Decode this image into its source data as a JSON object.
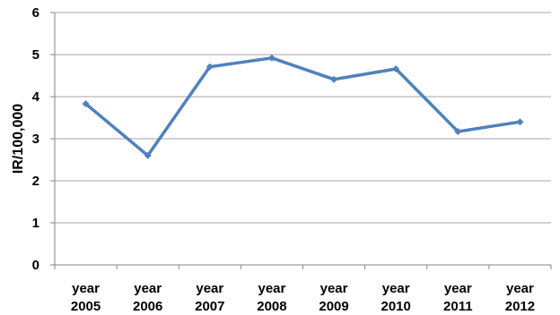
{
  "chart_data": {
    "type": "line",
    "title": "",
    "xlabel": "",
    "ylabel": "IR/100,000",
    "categories": [
      [
        "year",
        "2005"
      ],
      [
        "year",
        "2006"
      ],
      [
        "year",
        "2007"
      ],
      [
        "year",
        "2008"
      ],
      [
        "year",
        "2009"
      ],
      [
        "year",
        "2010"
      ],
      [
        "year",
        "2011"
      ],
      [
        "year",
        "2012"
      ]
    ],
    "series": [
      {
        "values": [
          3.83,
          2.6,
          4.71,
          4.92,
          4.41,
          4.66,
          3.17,
          3.4
        ]
      }
    ],
    "ylim": [
      0,
      6
    ],
    "yticks": [
      0,
      1,
      2,
      3,
      4,
      5,
      6
    ],
    "grid": true,
    "legend": "none",
    "colors": {
      "line": "#4F81BD",
      "grid": "#A6A6A6",
      "axis": "#868686"
    }
  }
}
